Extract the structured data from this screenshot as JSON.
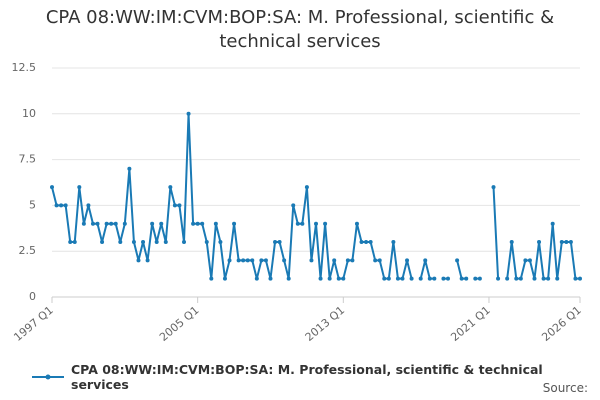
{
  "chart_data": {
    "type": "line",
    "title": "CPA 08:WW:IM:CVM:BOP:SA: M. Professional, scientific & technical services",
    "categories": [
      "1997 Q1",
      null,
      null,
      null,
      null,
      null,
      null,
      null,
      null,
      null,
      null,
      null,
      null,
      null,
      null,
      null,
      null,
      null,
      null,
      null,
      null,
      null,
      null,
      null,
      null,
      null,
      null,
      null,
      null,
      null,
      null,
      null,
      "2005 Q1",
      null,
      null,
      null,
      null,
      null,
      null,
      null,
      null,
      null,
      null,
      null,
      null,
      null,
      null,
      null,
      null,
      null,
      null,
      null,
      null,
      null,
      null,
      null,
      null,
      null,
      null,
      null,
      null,
      null,
      null,
      null,
      "2013 Q1",
      null,
      null,
      null,
      null,
      null,
      null,
      null,
      null,
      null,
      null,
      null,
      null,
      null,
      null,
      null,
      null,
      null,
      null,
      null,
      null,
      null,
      null,
      null,
      null,
      null,
      null,
      null,
      null,
      null,
      null,
      null,
      "2021 Q1",
      null,
      null,
      null,
      null,
      null,
      null,
      null,
      null,
      null,
      null,
      null,
      null,
      null,
      null,
      null,
      null,
      null,
      null,
      null,
      "2026 Q1"
    ],
    "series": [
      {
        "name": "CPA 08:WW:IM:CVM:BOP:SA: M. Professional, scientific & technical services",
        "color": "#1a7ab5",
        "values": [
          6,
          5,
          5,
          5,
          3,
          3,
          6,
          4,
          5,
          4,
          4,
          3,
          4,
          4,
          4,
          3,
          4,
          7,
          3,
          2,
          3,
          2,
          4,
          3,
          4,
          3,
          6,
          5,
          5,
          3,
          10,
          4,
          4,
          4,
          3,
          1,
          4,
          3,
          1,
          2,
          4,
          2,
          2,
          2,
          2,
          1,
          2,
          2,
          1,
          3,
          3,
          2,
          1,
          5,
          4,
          4,
          6,
          2,
          4,
          1,
          4,
          1,
          2,
          1,
          1,
          2,
          2,
          4,
          3,
          3,
          3,
          2,
          2,
          1,
          1,
          3,
          1,
          1,
          2,
          1,
          null,
          1,
          2,
          1,
          1,
          null,
          1,
          1,
          null,
          2,
          1,
          1,
          null,
          1,
          1,
          null,
          null,
          6,
          1,
          null,
          1,
          3,
          1,
          1,
          2,
          2,
          1,
          3,
          1,
          1,
          4,
          1,
          3,
          3,
          3,
          1,
          1
        ]
      }
    ],
    "ylim": [
      0,
      12.5
    ],
    "yticks": [
      0,
      2.5,
      5,
      7.5,
      10,
      12.5
    ],
    "grid": true,
    "source_label": "Source:"
  }
}
